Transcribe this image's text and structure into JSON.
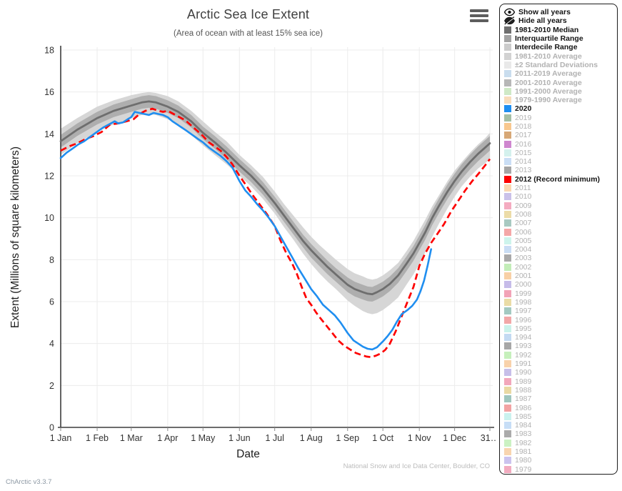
{
  "app": {
    "version_label": "ChArctic v3.3.7",
    "credit": "National Snow and Ice Data Center, Boulder, CO"
  },
  "chart_data": {
    "type": "line",
    "title": "Arctic Sea Ice Extent",
    "subtitle": "(Area of ocean with at least 15% sea ice)",
    "xlabel": "Date",
    "ylabel": "Extent (Millions of square kilometers)",
    "ylim": [
      0,
      18
    ],
    "grid": true,
    "legend_position": "right",
    "y_ticks": [
      0,
      2,
      4,
      6,
      8,
      10,
      12,
      14,
      16,
      18
    ],
    "x_ticks": [
      "1 Jan",
      "1 Feb",
      "1 Mar",
      "1 Apr",
      "1 May",
      "1 Jun",
      "1 Jul",
      "1 Aug",
      "1 Sep",
      "1 Oct",
      "1 Nov",
      "1 Dec",
      "31…"
    ],
    "x_tick_days": [
      1,
      32,
      61,
      92,
      122,
      153,
      183,
      214,
      245,
      275,
      306,
      336,
      366
    ],
    "bands": [
      {
        "id": "interdecile",
        "name": "Interdecile Range",
        "color": "#d6d6d6",
        "days": [
          1,
          15,
          32,
          46,
          61,
          70,
          76,
          82,
          92,
          101,
          112,
          122,
          132,
          142,
          153,
          163,
          173,
          183,
          191,
          199,
          207,
          214,
          221,
          228,
          235,
          245,
          251,
          258,
          262,
          266,
          270,
          275,
          281,
          288,
          295,
          301,
          306,
          311,
          317,
          323,
          330,
          336,
          342,
          349,
          356,
          362,
          366
        ],
        "lo": [
          13.0,
          13.55,
          14.1,
          14.45,
          14.75,
          14.9,
          14.95,
          14.9,
          14.7,
          14.4,
          13.95,
          13.45,
          13.0,
          12.55,
          12.0,
          11.5,
          10.9,
          10.2,
          9.55,
          8.95,
          8.3,
          7.8,
          7.35,
          6.95,
          6.6,
          6.05,
          5.8,
          5.55,
          5.45,
          5.4,
          5.45,
          5.6,
          5.85,
          6.2,
          6.8,
          7.3,
          7.8,
          8.35,
          9.1,
          9.75,
          10.45,
          11.0,
          11.5,
          11.95,
          12.35,
          12.6,
          12.8
        ],
        "hi": [
          14.25,
          14.75,
          15.3,
          15.6,
          15.85,
          15.95,
          16.0,
          15.95,
          15.8,
          15.55,
          15.1,
          14.6,
          14.1,
          13.65,
          13.0,
          12.5,
          11.95,
          11.25,
          10.65,
          10.1,
          9.55,
          9.1,
          8.7,
          8.35,
          8.0,
          7.55,
          7.35,
          7.2,
          7.1,
          7.05,
          7.1,
          7.25,
          7.5,
          7.85,
          8.4,
          8.9,
          9.4,
          9.9,
          10.55,
          11.1,
          11.75,
          12.25,
          12.65,
          13.1,
          13.5,
          13.8,
          14.05
        ]
      },
      {
        "id": "interquartile",
        "name": "Interquartile Range",
        "color": "#aeaeae",
        "days": [
          1,
          15,
          32,
          46,
          61,
          70,
          76,
          82,
          92,
          101,
          112,
          122,
          132,
          142,
          153,
          163,
          173,
          183,
          191,
          199,
          207,
          214,
          221,
          228,
          235,
          245,
          251,
          258,
          262,
          266,
          270,
          275,
          281,
          288,
          295,
          301,
          306,
          311,
          317,
          323,
          330,
          336,
          342,
          349,
          356,
          362,
          366
        ],
        "lo": [
          13.35,
          13.9,
          14.45,
          14.8,
          15.05,
          15.2,
          15.25,
          15.2,
          15.0,
          14.75,
          14.3,
          13.75,
          13.3,
          12.8,
          12.2,
          11.7,
          11.1,
          10.4,
          9.8,
          9.2,
          8.6,
          8.1,
          7.7,
          7.3,
          6.95,
          6.45,
          6.25,
          6.1,
          6.02,
          6.0,
          6.1,
          6.25,
          6.5,
          6.9,
          7.45,
          7.95,
          8.45,
          8.95,
          9.65,
          10.25,
          10.9,
          11.4,
          11.85,
          12.3,
          12.7,
          13.0,
          13.2
        ],
        "hi": [
          13.95,
          14.5,
          15.05,
          15.4,
          15.65,
          15.8,
          15.85,
          15.8,
          15.6,
          15.35,
          14.9,
          14.35,
          13.9,
          13.4,
          12.8,
          12.3,
          11.7,
          11.0,
          10.4,
          9.8,
          9.2,
          8.75,
          8.35,
          7.95,
          7.6,
          7.15,
          6.95,
          6.8,
          6.72,
          6.7,
          6.8,
          6.95,
          7.2,
          7.6,
          8.15,
          8.65,
          9.15,
          9.65,
          10.35,
          10.95,
          11.6,
          12.1,
          12.55,
          13.0,
          13.4,
          13.7,
          13.9
        ]
      }
    ],
    "series": [
      {
        "id": "median",
        "name": "1981-2010 Median",
        "color": "#6e6e6e",
        "style": "solid",
        "width": 2.8,
        "days": [
          1,
          15,
          32,
          46,
          61,
          70,
          76,
          82,
          92,
          101,
          112,
          122,
          132,
          142,
          153,
          163,
          173,
          183,
          191,
          199,
          207,
          214,
          221,
          228,
          235,
          245,
          251,
          258,
          262,
          266,
          270,
          275,
          281,
          288,
          295,
          301,
          306,
          311,
          317,
          323,
          330,
          336,
          342,
          349,
          356,
          362,
          366
        ],
        "values": [
          13.65,
          14.2,
          14.75,
          15.1,
          15.35,
          15.5,
          15.55,
          15.5,
          15.3,
          15.05,
          14.6,
          14.05,
          13.6,
          13.1,
          12.5,
          12.0,
          11.4,
          10.7,
          10.1,
          9.5,
          8.9,
          8.45,
          8.05,
          7.65,
          7.3,
          6.8,
          6.6,
          6.45,
          6.38,
          6.35,
          6.45,
          6.6,
          6.85,
          7.25,
          7.8,
          8.3,
          8.8,
          9.3,
          10.0,
          10.6,
          11.25,
          11.75,
          12.2,
          12.65,
          13.05,
          13.35,
          13.55
        ]
      },
      {
        "id": "y2012",
        "name": "2012 (Record minimum)",
        "color": "#fd0000",
        "style": "dashed",
        "width": 2.7,
        "days": [
          1,
          8,
          15,
          22,
          29,
          36,
          43,
          50,
          57,
          63,
          68,
          73,
          79,
          84,
          88,
          92,
          97,
          102,
          107,
          112,
          117,
          122,
          127,
          132,
          137,
          142,
          147,
          153,
          158,
          164,
          170,
          176,
          183,
          188,
          193,
          198,
          202,
          206,
          210,
          214,
          218,
          222,
          227,
          232,
          237,
          242,
          247,
          252,
          257,
          261,
          265,
          269,
          273,
          277,
          281,
          286,
          291,
          296,
          301,
          306,
          311,
          316,
          321,
          327,
          333,
          339,
          345,
          351,
          357,
          362,
          366
        ],
        "values": [
          13.2,
          13.4,
          13.55,
          13.75,
          13.9,
          14.1,
          14.45,
          14.5,
          14.6,
          14.7,
          14.95,
          15.1,
          15.2,
          15.1,
          15.05,
          15.1,
          14.95,
          14.8,
          14.65,
          14.4,
          14.15,
          13.9,
          13.6,
          13.4,
          13.2,
          12.9,
          12.55,
          12.0,
          11.6,
          11.1,
          10.65,
          10.2,
          9.6,
          8.9,
          8.3,
          7.8,
          7.3,
          6.7,
          6.15,
          5.85,
          5.5,
          5.2,
          4.85,
          4.5,
          4.15,
          3.9,
          3.72,
          3.55,
          3.45,
          3.38,
          3.35,
          3.42,
          3.52,
          3.7,
          4.0,
          4.6,
          5.3,
          6.0,
          6.7,
          7.7,
          8.3,
          8.8,
          9.2,
          9.7,
          10.3,
          10.8,
          11.3,
          11.75,
          12.15,
          12.5,
          12.8
        ]
      },
      {
        "id": "y2020",
        "name": "2020",
        "color": "#1f8ef0",
        "style": "solid",
        "width": 2.6,
        "days": [
          1,
          6,
          11,
          16,
          21,
          27,
          32,
          37,
          42,
          47,
          50,
          54,
          58,
          61,
          64,
          68,
          72,
          76,
          80,
          84,
          88,
          92,
          96,
          100,
          104,
          108,
          113,
          118,
          122,
          127,
          132,
          137,
          142,
          147,
          153,
          158,
          163,
          168,
          173,
          178,
          183,
          188,
          193,
          198,
          203,
          208,
          214,
          219,
          224,
          229,
          234,
          239,
          245,
          250,
          254,
          258,
          262,
          266,
          270,
          275,
          279,
          283,
          287,
          291,
          296,
          300,
          304,
          307,
          310,
          313,
          316
        ],
        "values": [
          12.85,
          13.1,
          13.3,
          13.5,
          13.65,
          13.9,
          14.1,
          14.3,
          14.45,
          14.6,
          14.5,
          14.55,
          14.7,
          14.8,
          15.05,
          15.0,
          14.95,
          14.9,
          15.0,
          14.95,
          14.9,
          14.8,
          14.6,
          14.45,
          14.3,
          14.15,
          13.95,
          13.75,
          13.6,
          13.35,
          13.15,
          12.95,
          12.7,
          12.4,
          11.75,
          11.3,
          11.0,
          10.65,
          10.35,
          10.0,
          9.6,
          9.1,
          8.6,
          8.1,
          7.6,
          7.15,
          6.6,
          6.25,
          5.85,
          5.6,
          5.35,
          5.0,
          4.5,
          4.15,
          4.0,
          3.85,
          3.75,
          3.72,
          3.82,
          4.1,
          4.35,
          4.65,
          5.05,
          5.4,
          5.6,
          5.8,
          6.1,
          6.5,
          7.0,
          7.7,
          8.5
        ]
      }
    ]
  },
  "legend": {
    "controls": [
      {
        "label": "Show all years",
        "icon": "eye-icon"
      },
      {
        "label": "Hide all years",
        "icon": "eye-slash-icon"
      }
    ],
    "items": [
      {
        "label": "1981-2010 Median",
        "swatch": "#6e6e6e",
        "style": "active"
      },
      {
        "label": "Interquartile Range",
        "swatch": "#a2a2a2",
        "style": "active"
      },
      {
        "label": "Interdecile Range",
        "swatch": "#cbcbcb",
        "style": "active"
      },
      {
        "label": "1981-2010 Average",
        "swatch": "#d2d2d2",
        "style": "muted"
      },
      {
        "label": "±2 Standard Deviations",
        "swatch": "#e9e9e9",
        "style": "muted"
      },
      {
        "label": "2011-2019 Average",
        "swatch": "#c9ddee",
        "style": "muted"
      },
      {
        "label": "2001-2010 Average",
        "swatch": "#b7b7b7",
        "style": "muted"
      },
      {
        "label": "1991-2000 Average",
        "swatch": "#cfe9c6",
        "style": "muted"
      },
      {
        "label": "1979-1990 Average",
        "swatch": "#f8dcbb",
        "style": "muted"
      },
      {
        "label": "2020",
        "swatch": "#1f8ef0",
        "style": "active"
      },
      {
        "label": "2019",
        "swatch": "#a5bfa5",
        "style": "muted-year"
      },
      {
        "label": "2018",
        "swatch": "#f8c88f",
        "style": "muted-year"
      },
      {
        "label": "2017",
        "swatch": "#d7a877",
        "style": "muted-year"
      },
      {
        "label": "2016",
        "swatch": "#cf87cf",
        "style": "muted-year"
      },
      {
        "label": "2015",
        "swatch": "#d4f1ed",
        "style": "muted-year"
      },
      {
        "label": "2014",
        "swatch": "#cadef5",
        "style": "muted-year"
      },
      {
        "label": "2013",
        "swatch": "#a5a5a5",
        "style": "muted-year"
      },
      {
        "label": "2012 (Record minimum)",
        "swatch": "#fd0000",
        "style": "active"
      },
      {
        "label": "2011",
        "swatch": "#f9d7b2",
        "style": "muted-year"
      },
      {
        "label": "2010",
        "swatch": "#cac1e9",
        "style": "muted-year"
      },
      {
        "label": "2009",
        "swatch": "#f4abc0",
        "style": "muted-year"
      },
      {
        "label": "2008",
        "swatch": "#ecdca8",
        "style": "muted-year"
      },
      {
        "label": "2007",
        "swatch": "#a8c9c1",
        "style": "muted-year"
      },
      {
        "label": "2006",
        "swatch": "#f4a7a7",
        "style": "muted-year"
      },
      {
        "label": "2005",
        "swatch": "#cdf4ec",
        "style": "muted-year"
      },
      {
        "label": "2004",
        "swatch": "#c9ddf4",
        "style": "muted-year"
      },
      {
        "label": "2003",
        "swatch": "#a9a9a9",
        "style": "muted-year"
      },
      {
        "label": "2002",
        "swatch": "#c3edb8",
        "style": "muted-year"
      },
      {
        "label": "2001",
        "swatch": "#f8d0a6",
        "style": "muted-year"
      },
      {
        "label": "2000",
        "swatch": "#c6bce9",
        "style": "muted-year"
      },
      {
        "label": "1999",
        "swatch": "#f2a3b7",
        "style": "muted-year"
      },
      {
        "label": "1998",
        "swatch": "#eadca6",
        "style": "muted-year"
      },
      {
        "label": "1997",
        "swatch": "#a3c9c1",
        "style": "muted-year"
      },
      {
        "label": "1996",
        "swatch": "#f2a7a7",
        "style": "muted-year"
      },
      {
        "label": "1995",
        "swatch": "#caf2ea",
        "style": "muted-year"
      },
      {
        "label": "1994",
        "swatch": "#c3daf2",
        "style": "muted-year"
      },
      {
        "label": "1993",
        "swatch": "#a7a7a7",
        "style": "muted-year"
      },
      {
        "label": "1992",
        "swatch": "#c6f0bc",
        "style": "muted-year"
      },
      {
        "label": "1991",
        "swatch": "#f8d2ab",
        "style": "muted-year"
      },
      {
        "label": "1990",
        "swatch": "#c7bfe9",
        "style": "muted-year"
      },
      {
        "label": "1989",
        "swatch": "#f2a7bb",
        "style": "muted-year"
      },
      {
        "label": "1988",
        "swatch": "#e9d9a3",
        "style": "muted-year"
      },
      {
        "label": "1987",
        "swatch": "#9fc6be",
        "style": "muted-year"
      },
      {
        "label": "1986",
        "swatch": "#f2a3a3",
        "style": "muted-year"
      },
      {
        "label": "1985",
        "swatch": "#caf2ee",
        "style": "muted-year"
      },
      {
        "label": "1984",
        "swatch": "#c7def6",
        "style": "muted-year"
      },
      {
        "label": "1983",
        "swatch": "#ababab",
        "style": "muted-year"
      },
      {
        "label": "1982",
        "swatch": "#cbf2c3",
        "style": "muted-year"
      },
      {
        "label": "1981",
        "swatch": "#f8d5af",
        "style": "muted-year"
      },
      {
        "label": "1980",
        "swatch": "#cbc3ee",
        "style": "muted-year"
      },
      {
        "label": "1979",
        "swatch": "#f2abbf",
        "style": "muted-year"
      }
    ]
  }
}
